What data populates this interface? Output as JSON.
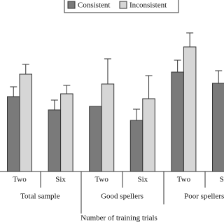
{
  "chart_data": {
    "type": "bar",
    "x_label": "Number of training trials",
    "categories": [
      "Two",
      "Six",
      "Two",
      "Six",
      "Two",
      "Six"
    ],
    "groups": [
      "Total sample",
      "Good spellers",
      "Poor spellers"
    ],
    "series": [
      {
        "name": "Consistent",
        "color": "#7a7a7a",
        "values": [
          107,
          88,
          93,
          73,
          142,
          126
        ],
        "errors": [
          14,
          14,
          0,
          16,
          17,
          18
        ]
      },
      {
        "name": "Inconsistent",
        "color": "#d6d6d6",
        "values": [
          139,
          111,
          125,
          104,
          178,
          null
        ],
        "errors": [
          14,
          12,
          36,
          33,
          20,
          null
        ]
      }
    ],
    "ylim": [
      0,
      245
    ]
  }
}
